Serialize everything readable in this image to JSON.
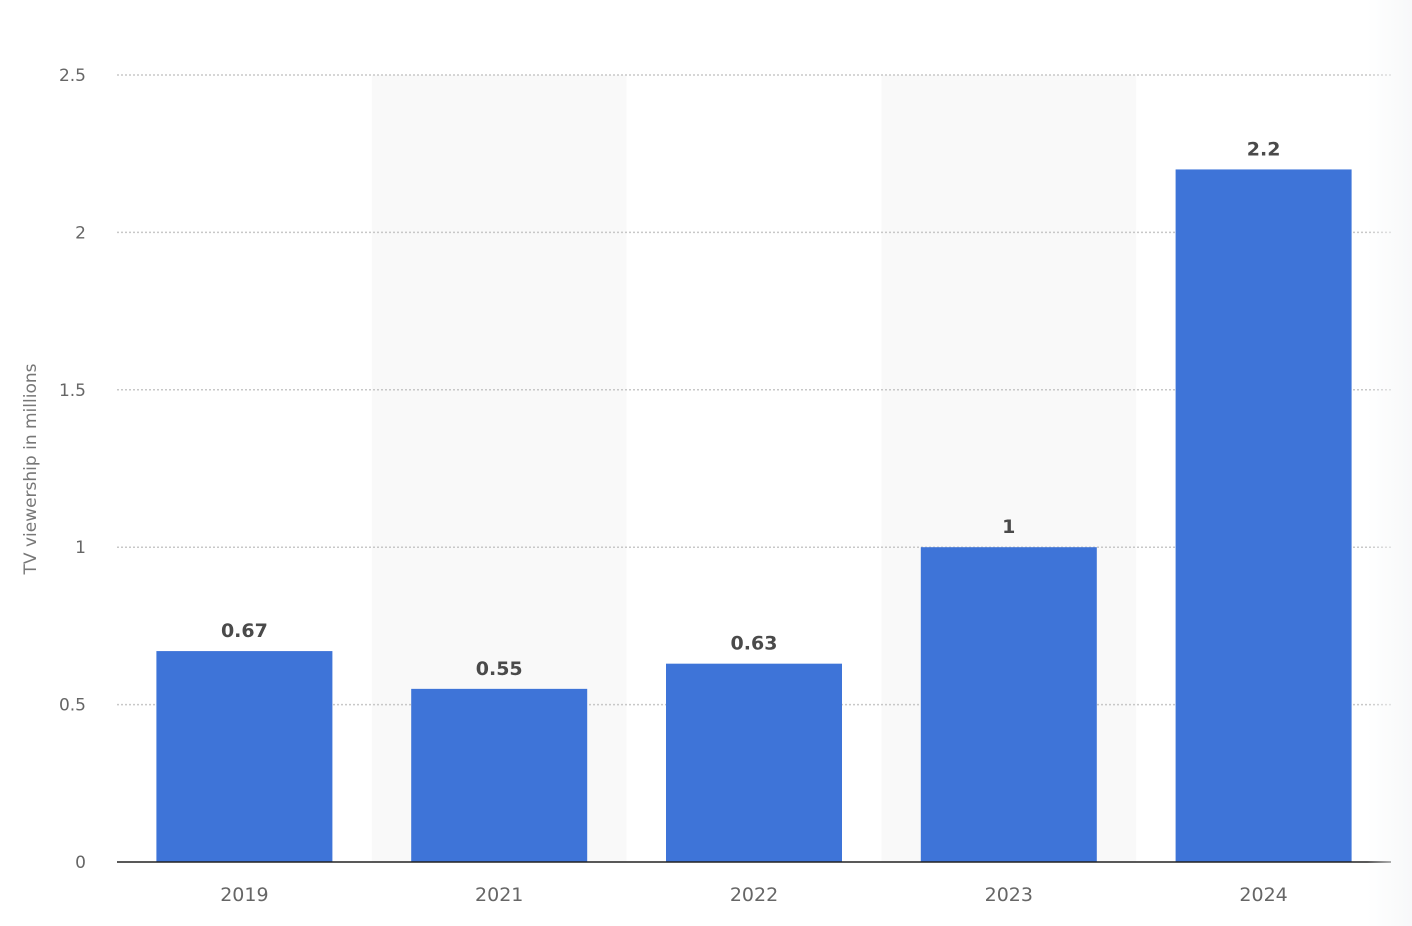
{
  "chart_data": {
    "type": "bar",
    "categories": [
      "2019",
      "2021",
      "2022",
      "2023",
      "2024"
    ],
    "values": [
      0.67,
      0.55,
      0.63,
      1,
      2.2
    ],
    "value_labels": [
      "0.67",
      "0.55",
      "0.63",
      "1",
      "2.2"
    ],
    "title": "",
    "xlabel": "",
    "ylabel": "TV viewership in millions",
    "ylim": [
      0,
      2.5
    ],
    "yticks": [
      0,
      0.5,
      1,
      1.5,
      2,
      2.5
    ],
    "ytick_labels": [
      "0",
      "0.5",
      "1",
      "1.5",
      "2",
      "2.5"
    ],
    "grid": true,
    "alternating_band_shading": true,
    "colors": {
      "bar": "#3e74d8",
      "band": "#f9f9f9",
      "grid": "#c8c8c8",
      "axis": "#222222",
      "value_label": "#4a4a4a",
      "tick_label": "#666666"
    }
  }
}
